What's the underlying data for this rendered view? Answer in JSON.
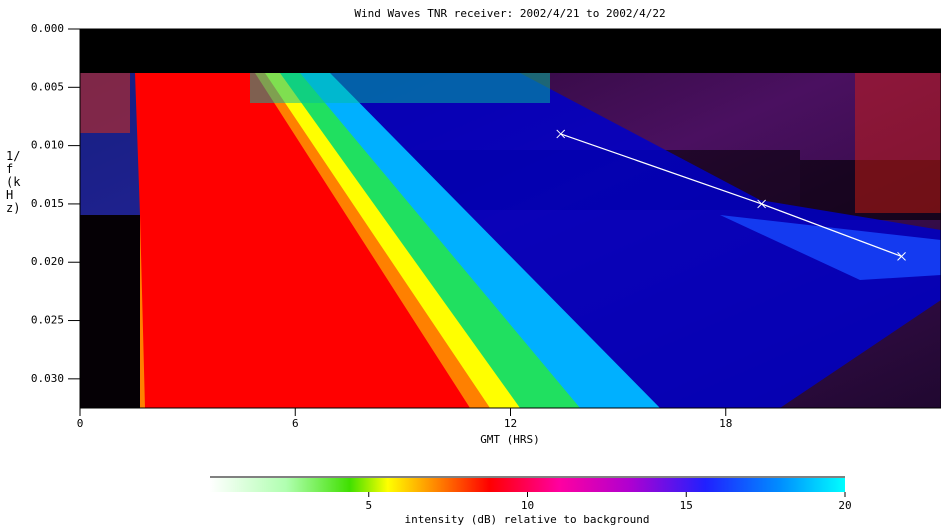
{
  "chart_data": {
    "type": "spectrogram",
    "title": "Wind Waves TNR receiver: 2002/4/21 to 2002/4/22",
    "x_label": "GMT (HRS)",
    "y_label": "1/f (kHz)",
    "xlim": [
      0,
      24
    ],
    "xticks": [
      0,
      6,
      12,
      18
    ],
    "ylim": [
      0.0325,
      0
    ],
    "yticks": [
      {
        "value": 0,
        "label": "0.000"
      },
      {
        "value": 0.005,
        "label": "0.005"
      },
      {
        "value": 0.01,
        "label": "0.010"
      },
      {
        "value": 0.015,
        "label": "0.015"
      },
      {
        "value": 0.02,
        "label": "0.020"
      },
      {
        "value": 0.025,
        "label": "0.025"
      },
      {
        "value": 0.03,
        "label": "0.030"
      }
    ],
    "series": [
      {
        "color": "#ffffff",
        "x": [
          13.4,
          19.0,
          22.9
        ],
        "values": [
          0.009,
          0.015,
          0.0195
        ]
      }
    ],
    "colorbar": {
      "label": "intensity (dB) relative to background",
      "lim": [
        0,
        20
      ],
      "ticks": [
        5,
        10,
        15,
        20
      ]
    }
  }
}
